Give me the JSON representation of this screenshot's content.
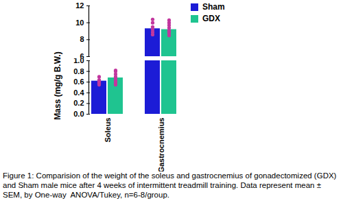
{
  "chart_data": {
    "type": "bar",
    "y_label": "Mass (mg/g B.W.)",
    "caption": "Figure 1: Comparision of the weight of the soleus and gastrocnemius of gonadectomized (GDX) and Sham male mice after 4 weeks of intermittent treadmill training. Data represent mean ± SEM, by One-way  ANOVA/Tukey, n=6-8/group.",
    "categories": [
      "Soleus",
      "Gastrocnemius"
    ],
    "series": [
      {
        "name": "Sham",
        "color": "#1c1cd6",
        "values": [
          0.62,
          9.3
        ],
        "errors": [
          0.03,
          0.3
        ],
        "points": [
          [
            0.55,
            0.58,
            0.6,
            0.62,
            0.64,
            0.7
          ],
          [
            8.6,
            8.9,
            9.2,
            9.5,
            10.0,
            10.4
          ]
        ]
      },
      {
        "name": "GDX",
        "color": "#1fc490",
        "values": [
          0.68,
          9.2
        ],
        "errors": [
          0.04,
          0.25
        ],
        "points": [
          [
            0.55,
            0.58,
            0.62,
            0.66,
            0.7,
            0.75,
            0.8,
            0.82
          ],
          [
            8.5,
            8.8,
            9.0,
            9.1,
            9.4,
            9.7,
            10.0,
            10.3
          ]
        ]
      }
    ],
    "ylim": [
      [
        0,
        1
      ],
      [
        6,
        12
      ]
    ],
    "yticks": [
      [
        {
          "value": 0,
          "label": "0.0"
        },
        0.2,
        0.4,
        0.6,
        0.8,
        {
          "value": 1,
          "label": "1.0"
        }
      ],
      [
        6,
        8,
        10,
        12
      ]
    ],
    "legend": "top-right"
  }
}
